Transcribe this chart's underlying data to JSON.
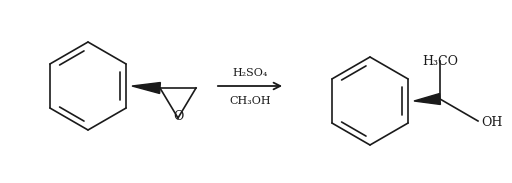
{
  "bg_color": "#ffffff",
  "line_color": "#1a1a1a",
  "arrow_label_top": "CH₃OH",
  "arrow_label_bottom": "H₂SO₄",
  "figsize": [
    5.12,
    1.83
  ],
  "dpi": 100
}
